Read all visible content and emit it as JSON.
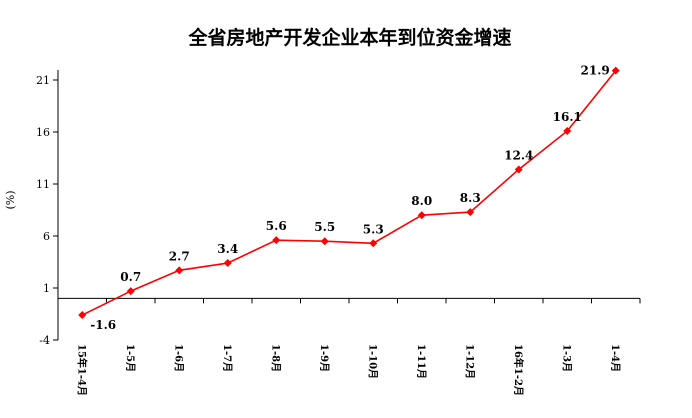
{
  "chart_data": {
    "type": "line",
    "title": "全省房地产开发企业本年到位资金增速",
    "ylabel": "(%)",
    "xlabel": "",
    "ylim": [
      -4,
      21
    ],
    "yticks": [
      "-4",
      "1",
      "6",
      "11",
      "16",
      "21"
    ],
    "grid": false,
    "legend": "none",
    "categories": [
      "15年1-4月",
      "1-5月",
      "1-6月",
      "1-7月",
      "1-8月",
      "1-9月",
      "1-10月",
      "1-11月",
      "1-12月",
      "16年1-2月",
      "1-3月",
      "1-4月"
    ],
    "series": [
      {
        "values": [
          -1.6,
          0.7,
          2.7,
          3.4,
          5.6,
          5.5,
          5.3,
          8.0,
          8.3,
          12.4,
          16.1,
          21.9
        ],
        "labels": [
          "-1.6",
          "0.7",
          "2.7",
          "3.4",
          "5.6",
          "5.5",
          "5.3",
          "8.0",
          "8.3",
          "12.4",
          "16.1",
          "21.9"
        ],
        "color": "#ff0000"
      }
    ]
  }
}
